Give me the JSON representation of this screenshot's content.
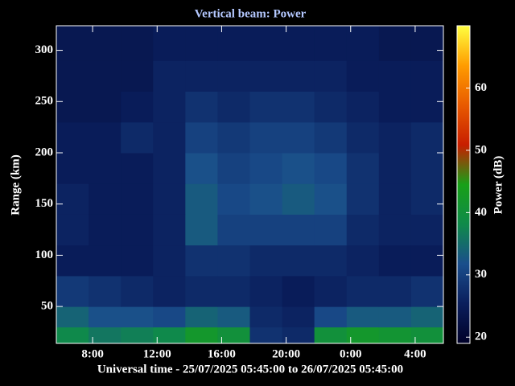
{
  "chart_data": {
    "type": "heatmap",
    "title": "Vertical beam: Power",
    "x_label": "Universal time - 25/07/2025 05:45:00 to 26/07/2025 05:45:00",
    "y_label": "Range (km)",
    "colorbar_label": "Power (dB)",
    "xlim": [
      5.75,
      29.75
    ],
    "xticks": [
      {
        "value": 8,
        "label": "8:00"
      },
      {
        "value": 12,
        "label": "12:00"
      },
      {
        "value": 16,
        "label": "16:00"
      },
      {
        "value": 20,
        "label": "20:00"
      },
      {
        "value": 24,
        "label": "0:00"
      },
      {
        "value": 28,
        "label": "4:00"
      }
    ],
    "ylim": [
      14,
      324
    ],
    "yticks": [
      50,
      100,
      150,
      200,
      250,
      300
    ],
    "clim": [
      19,
      70
    ],
    "cticks": [
      20,
      30,
      40,
      50,
      60
    ],
    "colorscale": [
      "#000028",
      "#0a1e5c",
      "#1a4e8c",
      "#0f8a4a",
      "#18a018",
      "#c81e00",
      "#e85a00",
      "#ff9c00",
      "#ffff40"
    ],
    "x_edges": [
      5.75,
      7.75,
      9.75,
      11.75,
      13.75,
      15.75,
      17.75,
      19.75,
      21.75,
      23.75,
      25.75,
      27.75,
      29.75
    ],
    "y_edges": [
      14,
      30,
      50,
      80,
      110,
      140,
      170,
      200,
      230,
      260,
      290,
      324
    ],
    "z": [
      [
        38,
        36,
        37,
        38,
        42,
        40,
        28,
        27,
        40,
        42,
        41,
        40
      ],
      [
        34,
        32,
        32,
        31,
        34,
        33,
        27,
        26,
        31,
        33,
        33,
        34
      ],
      [
        29,
        28,
        27,
        26,
        27,
        27,
        26,
        25,
        26,
        27,
        27,
        28
      ],
      [
        25,
        25,
        25,
        26,
        28,
        28,
        27,
        27,
        27,
        26,
        25,
        25
      ],
      [
        26,
        25,
        25,
        26,
        33,
        30,
        30,
        30,
        30,
        27,
        26,
        26
      ],
      [
        26,
        25,
        25,
        26,
        33,
        31,
        32,
        33,
        32,
        28,
        26,
        27
      ],
      [
        25,
        25,
        25,
        26,
        32,
        30,
        31,
        32,
        31,
        28,
        26,
        27
      ],
      [
        25,
        25,
        27,
        26,
        30,
        29,
        30,
        30,
        29,
        27,
        26,
        27
      ],
      [
        24,
        24,
        25,
        26,
        28,
        27,
        28,
        28,
        27,
        26,
        25,
        25
      ],
      [
        24,
        24,
        24,
        26,
        26,
        26,
        26,
        26,
        26,
        25,
        25,
        25
      ],
      [
        24,
        24,
        24,
        25,
        25,
        25,
        25,
        25,
        25,
        25,
        24,
        24
      ]
    ]
  }
}
